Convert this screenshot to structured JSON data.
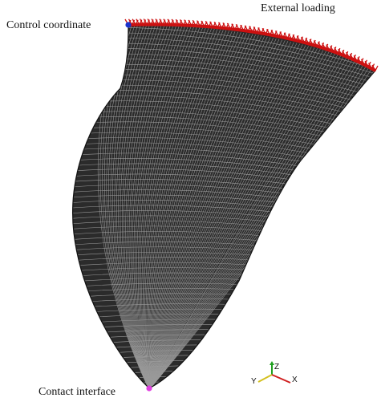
{
  "labels": {
    "external_loading": "External loading",
    "control_coordinate": "Control coordinate",
    "contact_interface": "Contact interface"
  },
  "axes_triad": {
    "z": "Z",
    "y": "Y",
    "x": "X"
  },
  "colors": {
    "mesh_face": "#2b2b2b",
    "mesh_line": "#9a9a9a",
    "load_arrows": "#cc1111",
    "control_point": "#1a33cc",
    "contact_point": "#e040e0",
    "axis_z": "#20a020",
    "axis_y": "#d4c020",
    "axis_x": "#d02020"
  }
}
